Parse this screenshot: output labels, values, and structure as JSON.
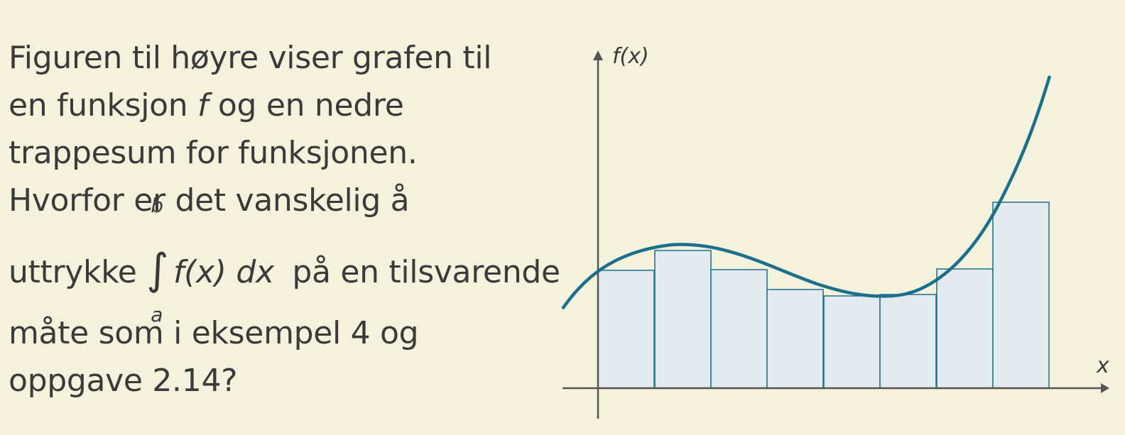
{
  "text": {
    "line1": "Figuren til høyre viser grafen til",
    "line2_before": "en funksjon ",
    "line2_f": "f",
    "line2_after": " og en nedre",
    "line3": "trappesum for funksjonen.",
    "line4": "Hvorfor er det vanskelig å",
    "line5_before": "uttrykke",
    "integral_upper": "b",
    "integral_lower": "a",
    "integral_expr": "f(x) dx",
    "line5_after": "på en tilsvarende",
    "line6": "måte som i eksempel 4 og",
    "line7": "oppgave 2.14?"
  },
  "graph": {
    "y_label": "f(x)",
    "x_label": "x",
    "curve_color": "#1b6f8a",
    "bar_fill": "#e3eaf0",
    "bar_stroke": "#1b6f8a",
    "axis_color": "#555555"
  }
}
